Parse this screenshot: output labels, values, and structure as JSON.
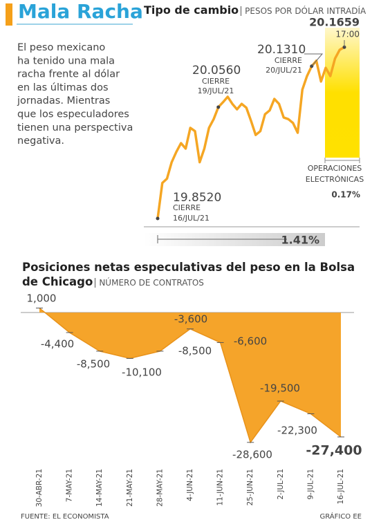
{
  "header": {
    "title": "Mala Racha",
    "intro": [
      "El peso mexicano",
      "ha tenido una mala",
      "racha frente al dólar",
      "en las últimas dos",
      "jornadas. Mientras",
      "que los especuladores",
      "tienen una perspectiva",
      "negativa."
    ]
  },
  "chart_data": [
    {
      "type": "line",
      "title": "Tipo de cambio",
      "subtitle": "PESOS POR DÓLAR INTRADÍA",
      "color": "#f5a623",
      "values": [
        19.852,
        19.917,
        19.925,
        19.955,
        19.974,
        19.99,
        19.98,
        20.018,
        20.012,
        19.955,
        19.98,
        20.018,
        20.034,
        20.056,
        20.065,
        20.075,
        20.062,
        20.052,
        20.062,
        20.055,
        20.031,
        20.005,
        20.012,
        20.043,
        20.05,
        20.071,
        20.062,
        20.037,
        20.034,
        20.027,
        20.009,
        20.088,
        20.113,
        20.131,
        20.141,
        20.103,
        20.128,
        20.113,
        20.145,
        20.161,
        20.1659
      ],
      "ylim": [
        19.8,
        20.2
      ],
      "annotations": [
        {
          "label": "20.1659",
          "lines": [
            "17:00"
          ]
        },
        {
          "label": "20.1310",
          "lines": [
            "CIERRE",
            "20/JUL/21"
          ]
        },
        {
          "label": "20.0560",
          "lines": [
            "CIERRE",
            "19/JUL/21"
          ]
        },
        {
          "label": "19.8520",
          "lines": [
            "CIERRE",
            "16/JUL/21"
          ]
        }
      ],
      "electronic_label": [
        "OPERACIONES",
        "ELECTRÓNICAS"
      ],
      "electronic_change": "0.17%",
      "total_change": "1.41%"
    },
    {
      "type": "area",
      "title": "Posiciones netas especulativas del peso en la Bolsa de Chicago",
      "subtitle": "NÚMERO DE CONTRATOS",
      "color": "#f5a42a",
      "categories": [
        "30-ABR-21",
        "7-MAY-21",
        "14-MAY-21",
        "21-MAY-21",
        "28-MAY-21",
        "4-JUN-21",
        "11-JUN-21",
        "25-JUN-21",
        "2-JUL-21",
        "9-JUL-21",
        "16-JUL-21"
      ],
      "values": [
        1000,
        -4400,
        -8500,
        -10100,
        -8500,
        -3600,
        -6600,
        -28600,
        -19500,
        -22300,
        -27400
      ],
      "value_labels": [
        "1,000",
        "-4,400",
        "-8,500",
        "-10,100",
        "-8,500",
        "-3,600",
        "-6,600",
        "-28,600",
        "-19,500",
        "-22,300",
        "-27,400"
      ],
      "ylim": [
        -30000,
        2000
      ]
    }
  ],
  "footer": {
    "source": "FUENTE: EL ECONOMISTA",
    "credit": "GRÁFICO EE"
  }
}
